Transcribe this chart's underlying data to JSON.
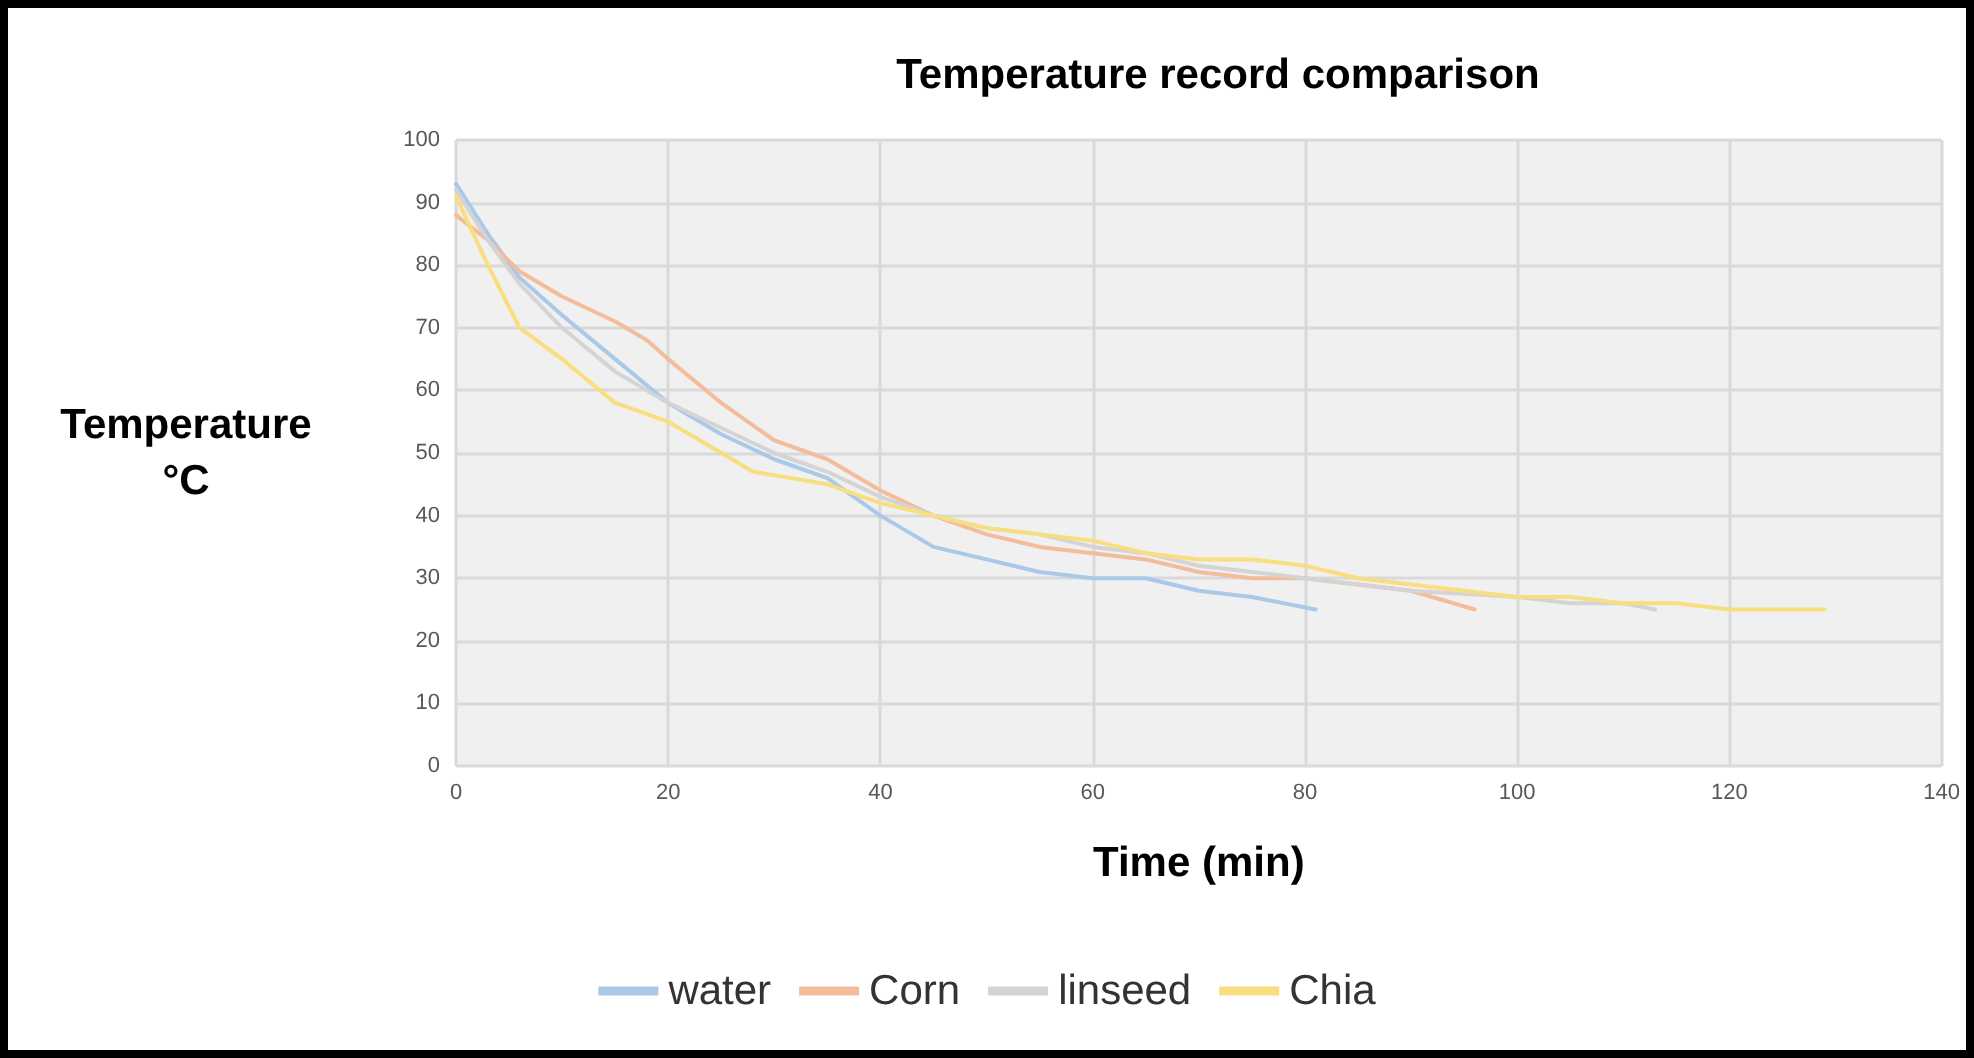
{
  "chart_data": {
    "type": "line",
    "title": "Temperature record comparison",
    "xlabel": "Time (min)",
    "ylabel": "Temperature\n°C",
    "xlim": [
      0,
      140
    ],
    "xticks": [
      0,
      20,
      40,
      60,
      80,
      100,
      120,
      140
    ],
    "ylim": [
      0,
      100
    ],
    "yticks": [
      0,
      10,
      20,
      30,
      40,
      50,
      60,
      70,
      80,
      90,
      100
    ],
    "grid": true,
    "legend": "bottom",
    "marker": "none",
    "line_style": "solid",
    "series": [
      {
        "name": "water",
        "color": "#a9c9e8",
        "x": [
          0,
          3,
          6,
          10,
          15,
          20,
          25,
          30,
          35,
          40,
          45,
          50,
          55,
          60,
          65,
          70,
          75,
          81
        ],
        "values": [
          93,
          85,
          78,
          72,
          65,
          58,
          53,
          49,
          46,
          40,
          35,
          33,
          31,
          30,
          30,
          28,
          27,
          25
        ]
      },
      {
        "name": "Corn",
        "color": "#f3bd9c",
        "x": [
          0,
          3,
          6,
          10,
          15,
          18,
          20,
          25,
          30,
          35,
          40,
          45,
          50,
          55,
          60,
          65,
          70,
          75,
          80,
          85,
          90,
          96
        ],
        "values": [
          88,
          84,
          79,
          75,
          71,
          68,
          65,
          58,
          52,
          49,
          44,
          40,
          37,
          35,
          34,
          33,
          31,
          30,
          30,
          29,
          28,
          25
        ]
      },
      {
        "name": "linseed",
        "color": "#d4d4d4",
        "x": [
          0,
          3,
          6,
          10,
          15,
          20,
          25,
          30,
          35,
          40,
          45,
          50,
          55,
          60,
          65,
          70,
          80,
          90,
          100,
          105,
          110,
          113
        ],
        "values": [
          92,
          84,
          77,
          70,
          63,
          58,
          54,
          50,
          47,
          43,
          40,
          38,
          37,
          35,
          34,
          32,
          30,
          28,
          27,
          26,
          26,
          25
        ]
      },
      {
        "name": "Chia",
        "color": "#f8de7e",
        "x": [
          0,
          3,
          6,
          10,
          15,
          20,
          25,
          28,
          35,
          40,
          45,
          50,
          55,
          60,
          65,
          70,
          75,
          80,
          85,
          90,
          95,
          100,
          105,
          110,
          115,
          120,
          125,
          129
        ],
        "values": [
          91,
          80,
          70,
          65,
          58,
          55,
          50,
          47,
          45,
          42,
          40,
          38,
          37,
          36,
          34,
          33,
          33,
          32,
          30,
          29,
          28,
          27,
          27,
          26,
          26,
          25,
          25,
          25
        ]
      }
    ]
  }
}
